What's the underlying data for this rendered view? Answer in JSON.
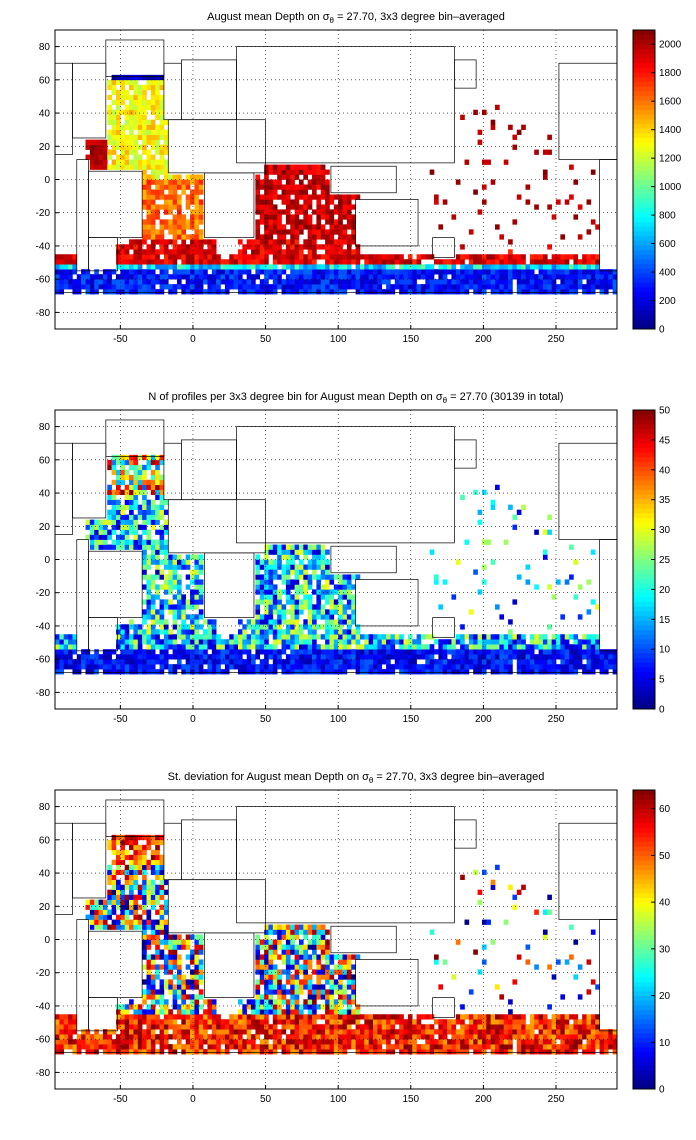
{
  "panels": [
    {
      "title_pre": "August mean Depth on ",
      "title_post": " = 27.70, 3x3 degree bin–averaged",
      "colorbar": {
        "min": 0,
        "max": 2100,
        "ticks": [
          0,
          200,
          400,
          600,
          800,
          1000,
          1200,
          1400,
          1600,
          1800,
          2000
        ]
      }
    },
    {
      "title_pre": "N of profiles per 3x3 degree bin for August mean Depth on ",
      "title_post": " = 27.70 (30139 in total)",
      "colorbar": {
        "min": 0,
        "max": 50,
        "ticks": [
          0,
          5,
          10,
          15,
          20,
          25,
          30,
          35,
          40,
          45,
          50
        ]
      }
    },
    {
      "title_pre": "St. deviation for August mean Depth on ",
      "title_post": " = 27.70, 3x3 degree bin–averaged",
      "colorbar": {
        "min": 0,
        "max": 64,
        "ticks": [
          0,
          10,
          20,
          30,
          40,
          50,
          60
        ]
      }
    }
  ],
  "symbol": {
    "sigma": "σ",
    "sub": "θ"
  },
  "axes": {
    "xlim": [
      -95,
      292
    ],
    "ylim": [
      -90,
      90
    ],
    "xticks": [
      -50,
      0,
      50,
      100,
      150,
      200,
      250
    ],
    "yticks": [
      -80,
      -60,
      -40,
      -20,
      0,
      20,
      40,
      60,
      80
    ],
    "grid": true,
    "grid_style": "dotted"
  },
  "colormap": "jet",
  "chart_data": [
    {
      "type": "heatmap",
      "title": "August mean Depth on σθ = 27.70, 3x3 degree bin–averaged",
      "xlim": [
        -95,
        292
      ],
      "ylim": [
        -90,
        90
      ],
      "colorbar_range": [
        0,
        2100
      ],
      "regions": [
        {
          "region": "Southern Ocean -65..-55",
          "value": 200
        },
        {
          "region": "Southern Ocean -55..-50",
          "value": 700
        },
        {
          "region": "South Atlantic -45..-35",
          "value": 1900
        },
        {
          "region": "South Atlantic -30..0",
          "value": 1650
        },
        {
          "region": "North Atlantic 20..60",
          "value": 1400
        },
        {
          "region": "Indian Ocean -35..25",
          "value": 1950
        },
        {
          "region": "Nordic Seas 60..80",
          "value": 50
        }
      ]
    },
    {
      "type": "heatmap",
      "title": "N of profiles per 3x3 degree bin for August mean Depth on σθ = 27.70 (30139 in total)",
      "xlim": [
        -95,
        292
      ],
      "ylim": [
        -90,
        90
      ],
      "colorbar_range": [
        0,
        50
      ],
      "total_profiles": 30139,
      "regions": [
        {
          "region": "Southern Ocean -65..-55",
          "value": 5
        },
        {
          "region": "South Atlantic -40..0",
          "value": 12
        },
        {
          "region": "North Atlantic 40..60",
          "value": 45
        },
        {
          "region": "Indian Ocean -40..20",
          "value": 15
        }
      ]
    },
    {
      "type": "heatmap",
      "title": "St. deviation for August mean Depth on σθ = 27.70, 3x3 degree bin–averaged",
      "xlim": [
        -95,
        292
      ],
      "ylim": [
        -90,
        90
      ],
      "colorbar_range": [
        0,
        64
      ],
      "regions": [
        {
          "region": "Southern Ocean -65..-45",
          "value": 62
        },
        {
          "region": "North Atlantic 45..70",
          "value": 62
        },
        {
          "region": "South Atlantic -40..0",
          "value": 25
        },
        {
          "region": "Indian Ocean -40..20",
          "value": 35
        }
      ]
    }
  ]
}
